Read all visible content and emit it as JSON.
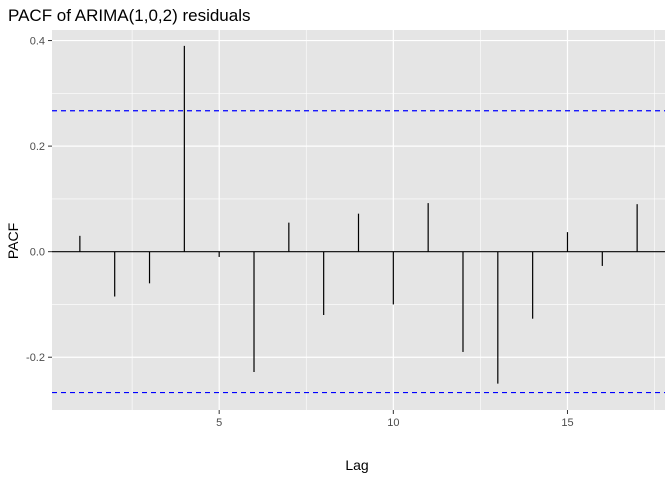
{
  "chart_data": {
    "type": "bar",
    "title": "PACF of ARIMA(1,0,2) residuals",
    "xlabel": "Lag",
    "ylabel": "PACF",
    "xlim": [
      0.2,
      17.8
    ],
    "ylim": [
      -0.3,
      0.42
    ],
    "x_ticks": [
      5,
      10,
      15
    ],
    "x_tick_labels": [
      "5",
      "10",
      "15"
    ],
    "y_ticks": [
      -0.2,
      0.0,
      0.2,
      0.4
    ],
    "y_tick_labels": [
      "-0.2",
      "0.0",
      "0.2",
      "0.4"
    ],
    "x": [
      1,
      2,
      3,
      4,
      5,
      6,
      7,
      8,
      9,
      10,
      11,
      12,
      13,
      14,
      15,
      16,
      17
    ],
    "values": [
      0.03,
      -0.085,
      -0.06,
      0.39,
      -0.01,
      -0.228,
      0.055,
      -0.12,
      0.072,
      -0.1,
      0.092,
      -0.19,
      -0.25,
      -0.127,
      0.037,
      -0.027,
      0.09
    ],
    "confidence_bounds": [
      0.267,
      -0.267
    ],
    "bound_color": "#0000ff",
    "panel_background": "#e5e5e5",
    "grid": true,
    "grid_color": "#ffffff",
    "bar_color": "#000000"
  }
}
